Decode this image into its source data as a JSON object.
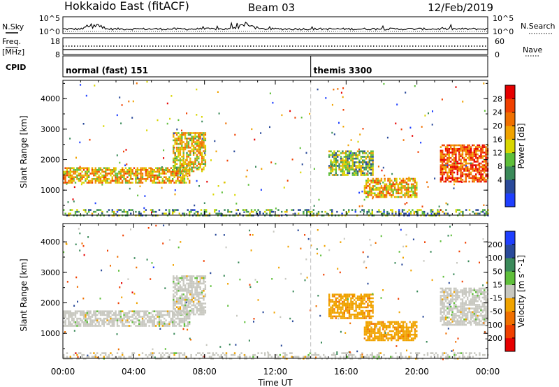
{
  "header": {
    "radar": "Hokkaido East (fitACF)",
    "beam": "Beam 03",
    "date": "12/Feb/2019"
  },
  "colors": {
    "power": [
      "#1f3fff",
      "#2a4a9a",
      "#3b8a5a",
      "#5fbf3a",
      "#d9d600",
      "#f0a300",
      "#f07000",
      "#f04000",
      "#e60000"
    ],
    "velocity": [
      "#e60000",
      "#f04000",
      "#f07000",
      "#f0a300",
      "#c8c8c0",
      "#5fbf3a",
      "#3b8a5a",
      "#2a4a9a",
      "#1f3fff"
    ]
  },
  "strips": {
    "nsky": {
      "label": "N.Sky",
      "left_ticks": [
        "10^5",
        "10^0"
      ],
      "right_ticks": [
        "10^5",
        "10^0"
      ],
      "right_label": "N.Search"
    },
    "freq": {
      "label_line1": "Freq.",
      "label_line2": "[MHz]",
      "left_ticks": [
        "18",
        "8"
      ],
      "right_ticks": [
        "60",
        "0"
      ],
      "right_label": "Nave"
    },
    "cpid": {
      "label": "CPID",
      "segments": [
        {
          "start_hour": 0,
          "text": "normal (fast) 151"
        },
        {
          "start_hour": 14,
          "text": "themis 3300"
        }
      ]
    }
  },
  "chart_data": [
    {
      "type": "heatmap",
      "title": "",
      "quantity": "Power",
      "colorbar_label": "Power [dB]",
      "colorbar_ticks": [
        "28",
        "24",
        "20",
        "16",
        "12",
        "8",
        "4"
      ],
      "colorbar_range": [
        0,
        30
      ],
      "xlabel": "",
      "ylabel": "Slant Range [km]",
      "x_unit": "hour UT",
      "xlim": [
        0,
        24
      ],
      "ylim": [
        180,
        4600
      ],
      "y_ticks": [
        "1000",
        "2000",
        "3000",
        "4000"
      ],
      "y_tick_values": [
        1000,
        2000,
        3000,
        4000
      ],
      "echo_regions": [
        {
          "t": [
            0.0,
            7.2
          ],
          "range_km": [
            1250,
            1750
          ],
          "value": 18
        },
        {
          "t": [
            6.2,
            8.0
          ],
          "range_km": [
            1600,
            2900
          ],
          "value": 16
        },
        {
          "t": [
            15.0,
            17.5
          ],
          "range_km": [
            1500,
            2300
          ],
          "value": 12
        },
        {
          "t": [
            17.0,
            20.0
          ],
          "range_km": [
            750,
            1400
          ],
          "value": 18
        },
        {
          "t": [
            21.3,
            24.0
          ],
          "range_km": [
            1300,
            2500
          ],
          "value": 24
        },
        {
          "t": [
            0.0,
            24.0
          ],
          "range_km": [
            200,
            380
          ],
          "value": 10
        }
      ]
    },
    {
      "type": "heatmap",
      "title": "",
      "quantity": "Velocity",
      "colorbar_label": "Velocity [m s^-1]",
      "colorbar_ticks": [
        "200",
        "100",
        "50",
        "15",
        "-15",
        "-50",
        "-100",
        "-200"
      ],
      "colorbar_range": [
        -250,
        250
      ],
      "xlabel": "Time UT",
      "ylabel": "Slant Range [km]",
      "x_unit": "hour UT",
      "xlim": [
        0,
        24
      ],
      "ylim": [
        180,
        4600
      ],
      "x_ticks": [
        "00:00",
        "04:00",
        "08:00",
        "12:00",
        "16:00",
        "20:00",
        "00:00"
      ],
      "x_tick_values": [
        0,
        4,
        8,
        12,
        16,
        20,
        24
      ],
      "y_ticks": [
        "1000",
        "2000",
        "3000",
        "4000"
      ],
      "y_tick_values": [
        1000,
        2000,
        3000,
        4000
      ],
      "echo_regions": [
        {
          "t": [
            0.0,
            7.2
          ],
          "range_km": [
            1250,
            1750
          ],
          "value": 0
        },
        {
          "t": [
            6.2,
            8.0
          ],
          "range_km": [
            1600,
            2900
          ],
          "value": 0
        },
        {
          "t": [
            15.0,
            17.5
          ],
          "range_km": [
            1500,
            2300
          ],
          "value": -60
        },
        {
          "t": [
            17.0,
            20.0
          ],
          "range_km": [
            750,
            1400
          ],
          "value": -60
        },
        {
          "t": [
            21.3,
            24.0
          ],
          "range_km": [
            1300,
            2500
          ],
          "value": 0
        },
        {
          "t": [
            0.0,
            24.0
          ],
          "range_km": [
            200,
            380
          ],
          "value": 0
        }
      ]
    }
  ]
}
